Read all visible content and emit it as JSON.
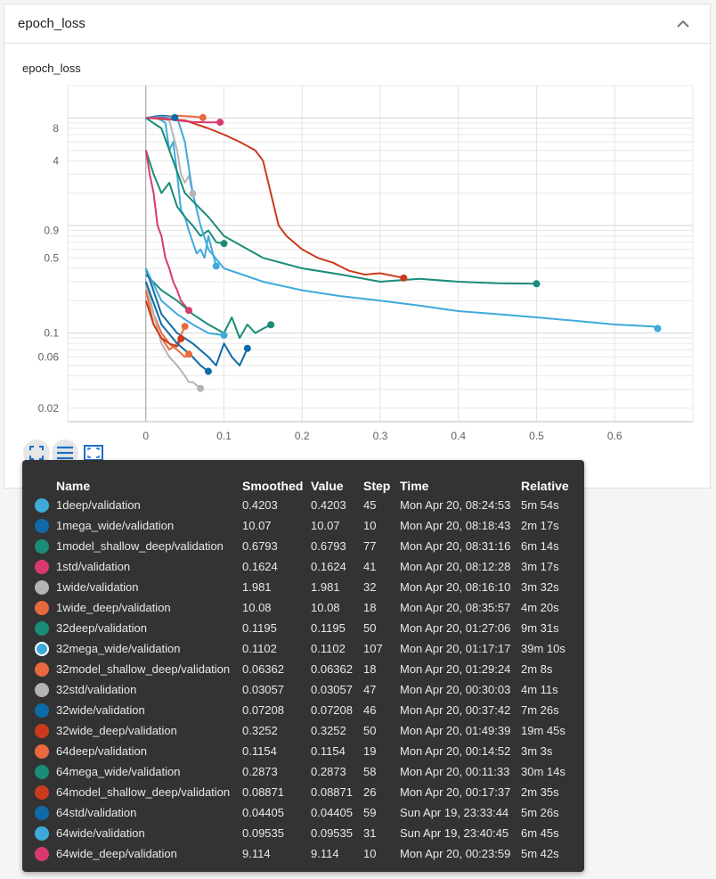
{
  "header": {
    "title": "epoch_loss",
    "collapse_icon": "chevron-up-icon"
  },
  "chart_data": {
    "type": "line",
    "title": "epoch_loss",
    "xlabel": "",
    "ylabel": "",
    "y_scale": "log",
    "xlim": [
      -0.1,
      0.7
    ],
    "ylim": [
      0.015,
      20
    ],
    "x_ticks": [
      0,
      0.1,
      0.2,
      0.3,
      0.4,
      0.5,
      0.6
    ],
    "x_tick_labels": [
      "0",
      "0.1",
      "0.2",
      "0.3",
      "0.4",
      "0.5",
      "0.6"
    ],
    "y_ticks": [
      0.02,
      0.06,
      0.1,
      0.5,
      0.9,
      4,
      8
    ],
    "y_tick_labels": [
      "0.02",
      "0.06",
      "0.1",
      "0.5",
      "0.9",
      "4",
      "8"
    ],
    "grid": true,
    "series": [
      {
        "name": "1deep/validation",
        "color": "#3eaadb",
        "values": [
          [
            0,
            10
          ],
          [
            0.01,
            10.2
          ],
          [
            0.02,
            9.5
          ],
          [
            0.025,
            9
          ],
          [
            0.03,
            5
          ],
          [
            0.035,
            6
          ],
          [
            0.04,
            3
          ],
          [
            0.045,
            1.4
          ],
          [
            0.05,
            1.2
          ],
          [
            0.055,
            0.9
          ],
          [
            0.06,
            0.7
          ],
          [
            0.065,
            0.55
          ],
          [
            0.07,
            0.6
          ],
          [
            0.075,
            0.5
          ],
          [
            0.08,
            0.8
          ],
          [
            0.09,
            0.42
          ]
        ]
      },
      {
        "name": "1mega_wide/validation",
        "color": "#0f6aa8",
        "values": [
          [
            0,
            10
          ],
          [
            0.01,
            10.3
          ],
          [
            0.02,
            10.5
          ],
          [
            0.03,
            10.4
          ],
          [
            0.037,
            10.07
          ]
        ]
      },
      {
        "name": "1model_shallow_deep/validation",
        "color": "#1a8c79",
        "values": [
          [
            0,
            5
          ],
          [
            0.01,
            3
          ],
          [
            0.02,
            2
          ],
          [
            0.03,
            2.5
          ],
          [
            0.04,
            1.5
          ],
          [
            0.05,
            1.2
          ],
          [
            0.06,
            1.0
          ],
          [
            0.07,
            0.8
          ],
          [
            0.08,
            0.9
          ],
          [
            0.09,
            0.7
          ],
          [
            0.1,
            0.68
          ]
        ]
      },
      {
        "name": "1std/validation",
        "color": "#d9396f",
        "values": [
          [
            0,
            5
          ],
          [
            0.005,
            3
          ],
          [
            0.01,
            2
          ],
          [
            0.015,
            1
          ],
          [
            0.02,
            0.8
          ],
          [
            0.025,
            0.5
          ],
          [
            0.03,
            0.4
          ],
          [
            0.035,
            0.3
          ],
          [
            0.04,
            0.25
          ],
          [
            0.045,
            0.2
          ],
          [
            0.05,
            0.18
          ],
          [
            0.055,
            0.1624
          ]
        ]
      },
      {
        "name": "1wide/validation",
        "color": "#b4b4b4",
        "values": [
          [
            0,
            10
          ],
          [
            0.01,
            10
          ],
          [
            0.02,
            9.8
          ],
          [
            0.03,
            9.5
          ],
          [
            0.04,
            5
          ],
          [
            0.045,
            3
          ],
          [
            0.05,
            2.5
          ],
          [
            0.055,
            2.9
          ],
          [
            0.06,
            1.98
          ]
        ]
      },
      {
        "name": "1wide_deep/validation",
        "color": "#e9693e",
        "values": [
          [
            0,
            10
          ],
          [
            0.02,
            10.2
          ],
          [
            0.04,
            10.5
          ],
          [
            0.06,
            10.3
          ],
          [
            0.073,
            10.08
          ]
        ]
      },
      {
        "name": "32deep/validation",
        "color": "#1a8c79",
        "values": [
          [
            0,
            0.35
          ],
          [
            0.02,
            0.25
          ],
          [
            0.04,
            0.2
          ],
          [
            0.06,
            0.15
          ],
          [
            0.08,
            0.12
          ],
          [
            0.1,
            0.1
          ],
          [
            0.11,
            0.14
          ],
          [
            0.12,
            0.09
          ],
          [
            0.13,
            0.12
          ],
          [
            0.14,
            0.1
          ],
          [
            0.15,
            0.11
          ],
          [
            0.16,
            0.1195
          ]
        ]
      },
      {
        "name": "32mega_wide/validation",
        "color": "#3eaadb",
        "values": [
          [
            0,
            10
          ],
          [
            0.02,
            10.3
          ],
          [
            0.04,
            10.1
          ],
          [
            0.05,
            6
          ],
          [
            0.06,
            2
          ],
          [
            0.07,
            1
          ],
          [
            0.08,
            0.6
          ],
          [
            0.1,
            0.4
          ],
          [
            0.15,
            0.3
          ],
          [
            0.2,
            0.25
          ],
          [
            0.25,
            0.22
          ],
          [
            0.3,
            0.2
          ],
          [
            0.35,
            0.18
          ],
          [
            0.4,
            0.16
          ],
          [
            0.45,
            0.15
          ],
          [
            0.5,
            0.14
          ],
          [
            0.55,
            0.13
          ],
          [
            0.6,
            0.12
          ],
          [
            0.65,
            0.115
          ],
          [
            0.655,
            0.1102
          ]
        ]
      },
      {
        "name": "32model_shallow_deep/validation",
        "color": "#e9693e",
        "values": [
          [
            0,
            0.3
          ],
          [
            0.01,
            0.15
          ],
          [
            0.02,
            0.1
          ],
          [
            0.03,
            0.08
          ],
          [
            0.04,
            0.07
          ],
          [
            0.05,
            0.06
          ],
          [
            0.055,
            0.06362
          ]
        ]
      },
      {
        "name": "32std/validation",
        "color": "#b4b4b4",
        "values": [
          [
            0,
            0.3
          ],
          [
            0.01,
            0.15
          ],
          [
            0.02,
            0.08
          ],
          [
            0.03,
            0.06
          ],
          [
            0.04,
            0.05
          ],
          [
            0.05,
            0.04
          ],
          [
            0.055,
            0.035
          ],
          [
            0.06,
            0.035
          ],
          [
            0.07,
            0.03057
          ]
        ]
      },
      {
        "name": "32wide/validation",
        "color": "#0f6aa8",
        "values": [
          [
            0,
            0.4
          ],
          [
            0.02,
            0.15
          ],
          [
            0.04,
            0.1
          ],
          [
            0.06,
            0.08
          ],
          [
            0.08,
            0.06
          ],
          [
            0.09,
            0.05
          ],
          [
            0.1,
            0.08
          ],
          [
            0.11,
            0.06
          ],
          [
            0.12,
            0.05
          ],
          [
            0.13,
            0.07208
          ]
        ]
      },
      {
        "name": "32wide_deep/validation",
        "color": "#cc3a1d",
        "values": [
          [
            0,
            10
          ],
          [
            0.05,
            9.5
          ],
          [
            0.08,
            8
          ],
          [
            0.1,
            7
          ],
          [
            0.12,
            6
          ],
          [
            0.14,
            5
          ],
          [
            0.15,
            4
          ],
          [
            0.16,
            2
          ],
          [
            0.17,
            1
          ],
          [
            0.18,
            0.8
          ],
          [
            0.2,
            0.6
          ],
          [
            0.22,
            0.5
          ],
          [
            0.24,
            0.45
          ],
          [
            0.26,
            0.38
          ],
          [
            0.28,
            0.35
          ],
          [
            0.3,
            0.36
          ],
          [
            0.33,
            0.3252
          ]
        ]
      },
      {
        "name": "64deep/validation",
        "color": "#e9693e",
        "values": [
          [
            0,
            0.25
          ],
          [
            0.01,
            0.12
          ],
          [
            0.02,
            0.09
          ],
          [
            0.03,
            0.07
          ],
          [
            0.04,
            0.08
          ],
          [
            0.05,
            0.1154
          ]
        ]
      },
      {
        "name": "64mega_wide/validation",
        "color": "#1a8c79",
        "values": [
          [
            0,
            10
          ],
          [
            0.02,
            8
          ],
          [
            0.05,
            2
          ],
          [
            0.08,
            1.2
          ],
          [
            0.1,
            0.8
          ],
          [
            0.15,
            0.5
          ],
          [
            0.2,
            0.4
          ],
          [
            0.25,
            0.35
          ],
          [
            0.3,
            0.3
          ],
          [
            0.35,
            0.32
          ],
          [
            0.4,
            0.3
          ],
          [
            0.45,
            0.29
          ],
          [
            0.5,
            0.2873
          ]
        ]
      },
      {
        "name": "64model_shallow_deep/validation",
        "color": "#cc3a1d",
        "values": [
          [
            0,
            0.2
          ],
          [
            0.01,
            0.12
          ],
          [
            0.02,
            0.09
          ],
          [
            0.03,
            0.08
          ],
          [
            0.04,
            0.075
          ],
          [
            0.045,
            0.08871
          ]
        ]
      },
      {
        "name": "64std/validation",
        "color": "#0f6aa8",
        "values": [
          [
            0,
            0.3
          ],
          [
            0.02,
            0.12
          ],
          [
            0.04,
            0.08
          ],
          [
            0.06,
            0.06
          ],
          [
            0.07,
            0.05
          ],
          [
            0.08,
            0.04405
          ]
        ]
      },
      {
        "name": "64wide/validation",
        "color": "#3eaadb",
        "values": [
          [
            0,
            0.4
          ],
          [
            0.02,
            0.2
          ],
          [
            0.04,
            0.15
          ],
          [
            0.06,
            0.12
          ],
          [
            0.08,
            0.1
          ],
          [
            0.1,
            0.09535
          ]
        ]
      },
      {
        "name": "64wide_deep/validation",
        "color": "#d9396f",
        "values": [
          [
            0,
            10
          ],
          [
            0.02,
            10
          ],
          [
            0.04,
            9.5
          ],
          [
            0.06,
            9.2
          ],
          [
            0.08,
            9.1
          ],
          [
            0.095,
            9.114
          ]
        ]
      }
    ]
  },
  "toolbar": {
    "fit_icon": "fit-domain-icon",
    "log_icon": "toggle-log-scale-icon",
    "expand_icon": "expand-chart-icon"
  },
  "tooltip": {
    "columns": [
      "Name",
      "Smoothed",
      "Value",
      "Step",
      "Time",
      "Relative"
    ],
    "rows": [
      {
        "color": "#3eaadb",
        "selected": false,
        "name": "1deep/validation",
        "smoothed": "0.4203",
        "value": "0.4203",
        "step": "45",
        "time": "Mon Apr 20, 08:24:53",
        "relative": "5m 54s"
      },
      {
        "color": "#0f6aa8",
        "selected": false,
        "name": "1mega_wide/validation",
        "smoothed": "10.07",
        "value": "10.07",
        "step": "10",
        "time": "Mon Apr 20, 08:18:43",
        "relative": "2m 17s"
      },
      {
        "color": "#1a8c79",
        "selected": false,
        "name": "1model_shallow_deep/validation",
        "smoothed": "0.6793",
        "value": "0.6793",
        "step": "77",
        "time": "Mon Apr 20, 08:31:16",
        "relative": "6m 14s"
      },
      {
        "color": "#d9396f",
        "selected": false,
        "name": "1std/validation",
        "smoothed": "0.1624",
        "value": "0.1624",
        "step": "41",
        "time": "Mon Apr 20, 08:12:28",
        "relative": "3m 17s"
      },
      {
        "color": "#b4b4b4",
        "selected": false,
        "name": "1wide/validation",
        "smoothed": "1.981",
        "value": "1.981",
        "step": "32",
        "time": "Mon Apr 20, 08:16:10",
        "relative": "3m 32s"
      },
      {
        "color": "#e9693e",
        "selected": false,
        "name": "1wide_deep/validation",
        "smoothed": "10.08",
        "value": "10.08",
        "step": "18",
        "time": "Mon Apr 20, 08:35:57",
        "relative": "4m 20s"
      },
      {
        "color": "#1a8c79",
        "selected": false,
        "name": "32deep/validation",
        "smoothed": "0.1195",
        "value": "0.1195",
        "step": "50",
        "time": "Mon Apr 20, 01:27:06",
        "relative": "9m 31s"
      },
      {
        "color": "#3eaadb",
        "selected": true,
        "name": "32mega_wide/validation",
        "smoothed": "0.1102",
        "value": "0.1102",
        "step": "107",
        "time": "Mon Apr 20, 01:17:17",
        "relative": "39m 10s"
      },
      {
        "color": "#e9693e",
        "selected": false,
        "name": "32model_shallow_deep/validation",
        "smoothed": "0.06362",
        "value": "0.06362",
        "step": "18",
        "time": "Mon Apr 20, 01:29:24",
        "relative": "2m 8s"
      },
      {
        "color": "#b4b4b4",
        "selected": false,
        "name": "32std/validation",
        "smoothed": "0.03057",
        "value": "0.03057",
        "step": "47",
        "time": "Mon Apr 20, 00:30:03",
        "relative": "4m 11s"
      },
      {
        "color": "#0f6aa8",
        "selected": false,
        "name": "32wide/validation",
        "smoothed": "0.07208",
        "value": "0.07208",
        "step": "46",
        "time": "Mon Apr 20, 00:37:42",
        "relative": "7m 26s"
      },
      {
        "color": "#cc3a1d",
        "selected": false,
        "name": "32wide_deep/validation",
        "smoothed": "0.3252",
        "value": "0.3252",
        "step": "50",
        "time": "Mon Apr 20, 01:49:39",
        "relative": "19m 45s"
      },
      {
        "color": "#e9693e",
        "selected": false,
        "name": "64deep/validation",
        "smoothed": "0.1154",
        "value": "0.1154",
        "step": "19",
        "time": "Mon Apr 20, 00:14:52",
        "relative": "3m 3s"
      },
      {
        "color": "#1a8c79",
        "selected": false,
        "name": "64mega_wide/validation",
        "smoothed": "0.2873",
        "value": "0.2873",
        "step": "58",
        "time": "Mon Apr 20, 00:11:33",
        "relative": "30m 14s"
      },
      {
        "color": "#cc3a1d",
        "selected": false,
        "name": "64model_shallow_deep/validation",
        "smoothed": "0.08871",
        "value": "0.08871",
        "step": "26",
        "time": "Mon Apr 20, 00:17:37",
        "relative": "2m 35s"
      },
      {
        "color": "#0f6aa8",
        "selected": false,
        "name": "64std/validation",
        "smoothed": "0.04405",
        "value": "0.04405",
        "step": "59",
        "time": "Sun Apr 19, 23:33:44",
        "relative": "5m 26s"
      },
      {
        "color": "#3eaadb",
        "selected": false,
        "name": "64wide/validation",
        "smoothed": "0.09535",
        "value": "0.09535",
        "step": "31",
        "time": "Sun Apr 19, 23:40:45",
        "relative": "6m 45s"
      },
      {
        "color": "#d9396f",
        "selected": false,
        "name": "64wide_deep/validation",
        "smoothed": "9.114",
        "value": "9.114",
        "step": "10",
        "time": "Mon Apr 20, 00:23:59",
        "relative": "5m 42s"
      }
    ]
  }
}
